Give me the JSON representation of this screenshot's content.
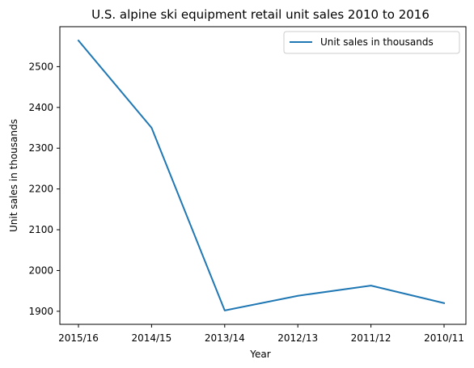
{
  "chart_data": {
    "type": "line",
    "title": "U.S. alpine ski equipment retail unit sales 2010 to 2016",
    "xlabel": "Year",
    "ylabel": "Unit sales in thousands",
    "categories": [
      "2015/16",
      "2014/15",
      "2013/14",
      "2012/13",
      "2011/12",
      "2010/11"
    ],
    "series": [
      {
        "name": "Unit sales in thousands",
        "values": [
          2564,
          2350,
          1902,
          1938,
          1963,
          1920
        ],
        "color": "#1f77b4"
      }
    ],
    "ylim": [
      1868,
      2598
    ],
    "yticks": [
      1900,
      2000,
      2100,
      2200,
      2300,
      2400,
      2500
    ],
    "grid": false,
    "legend_position": "top-right"
  }
}
